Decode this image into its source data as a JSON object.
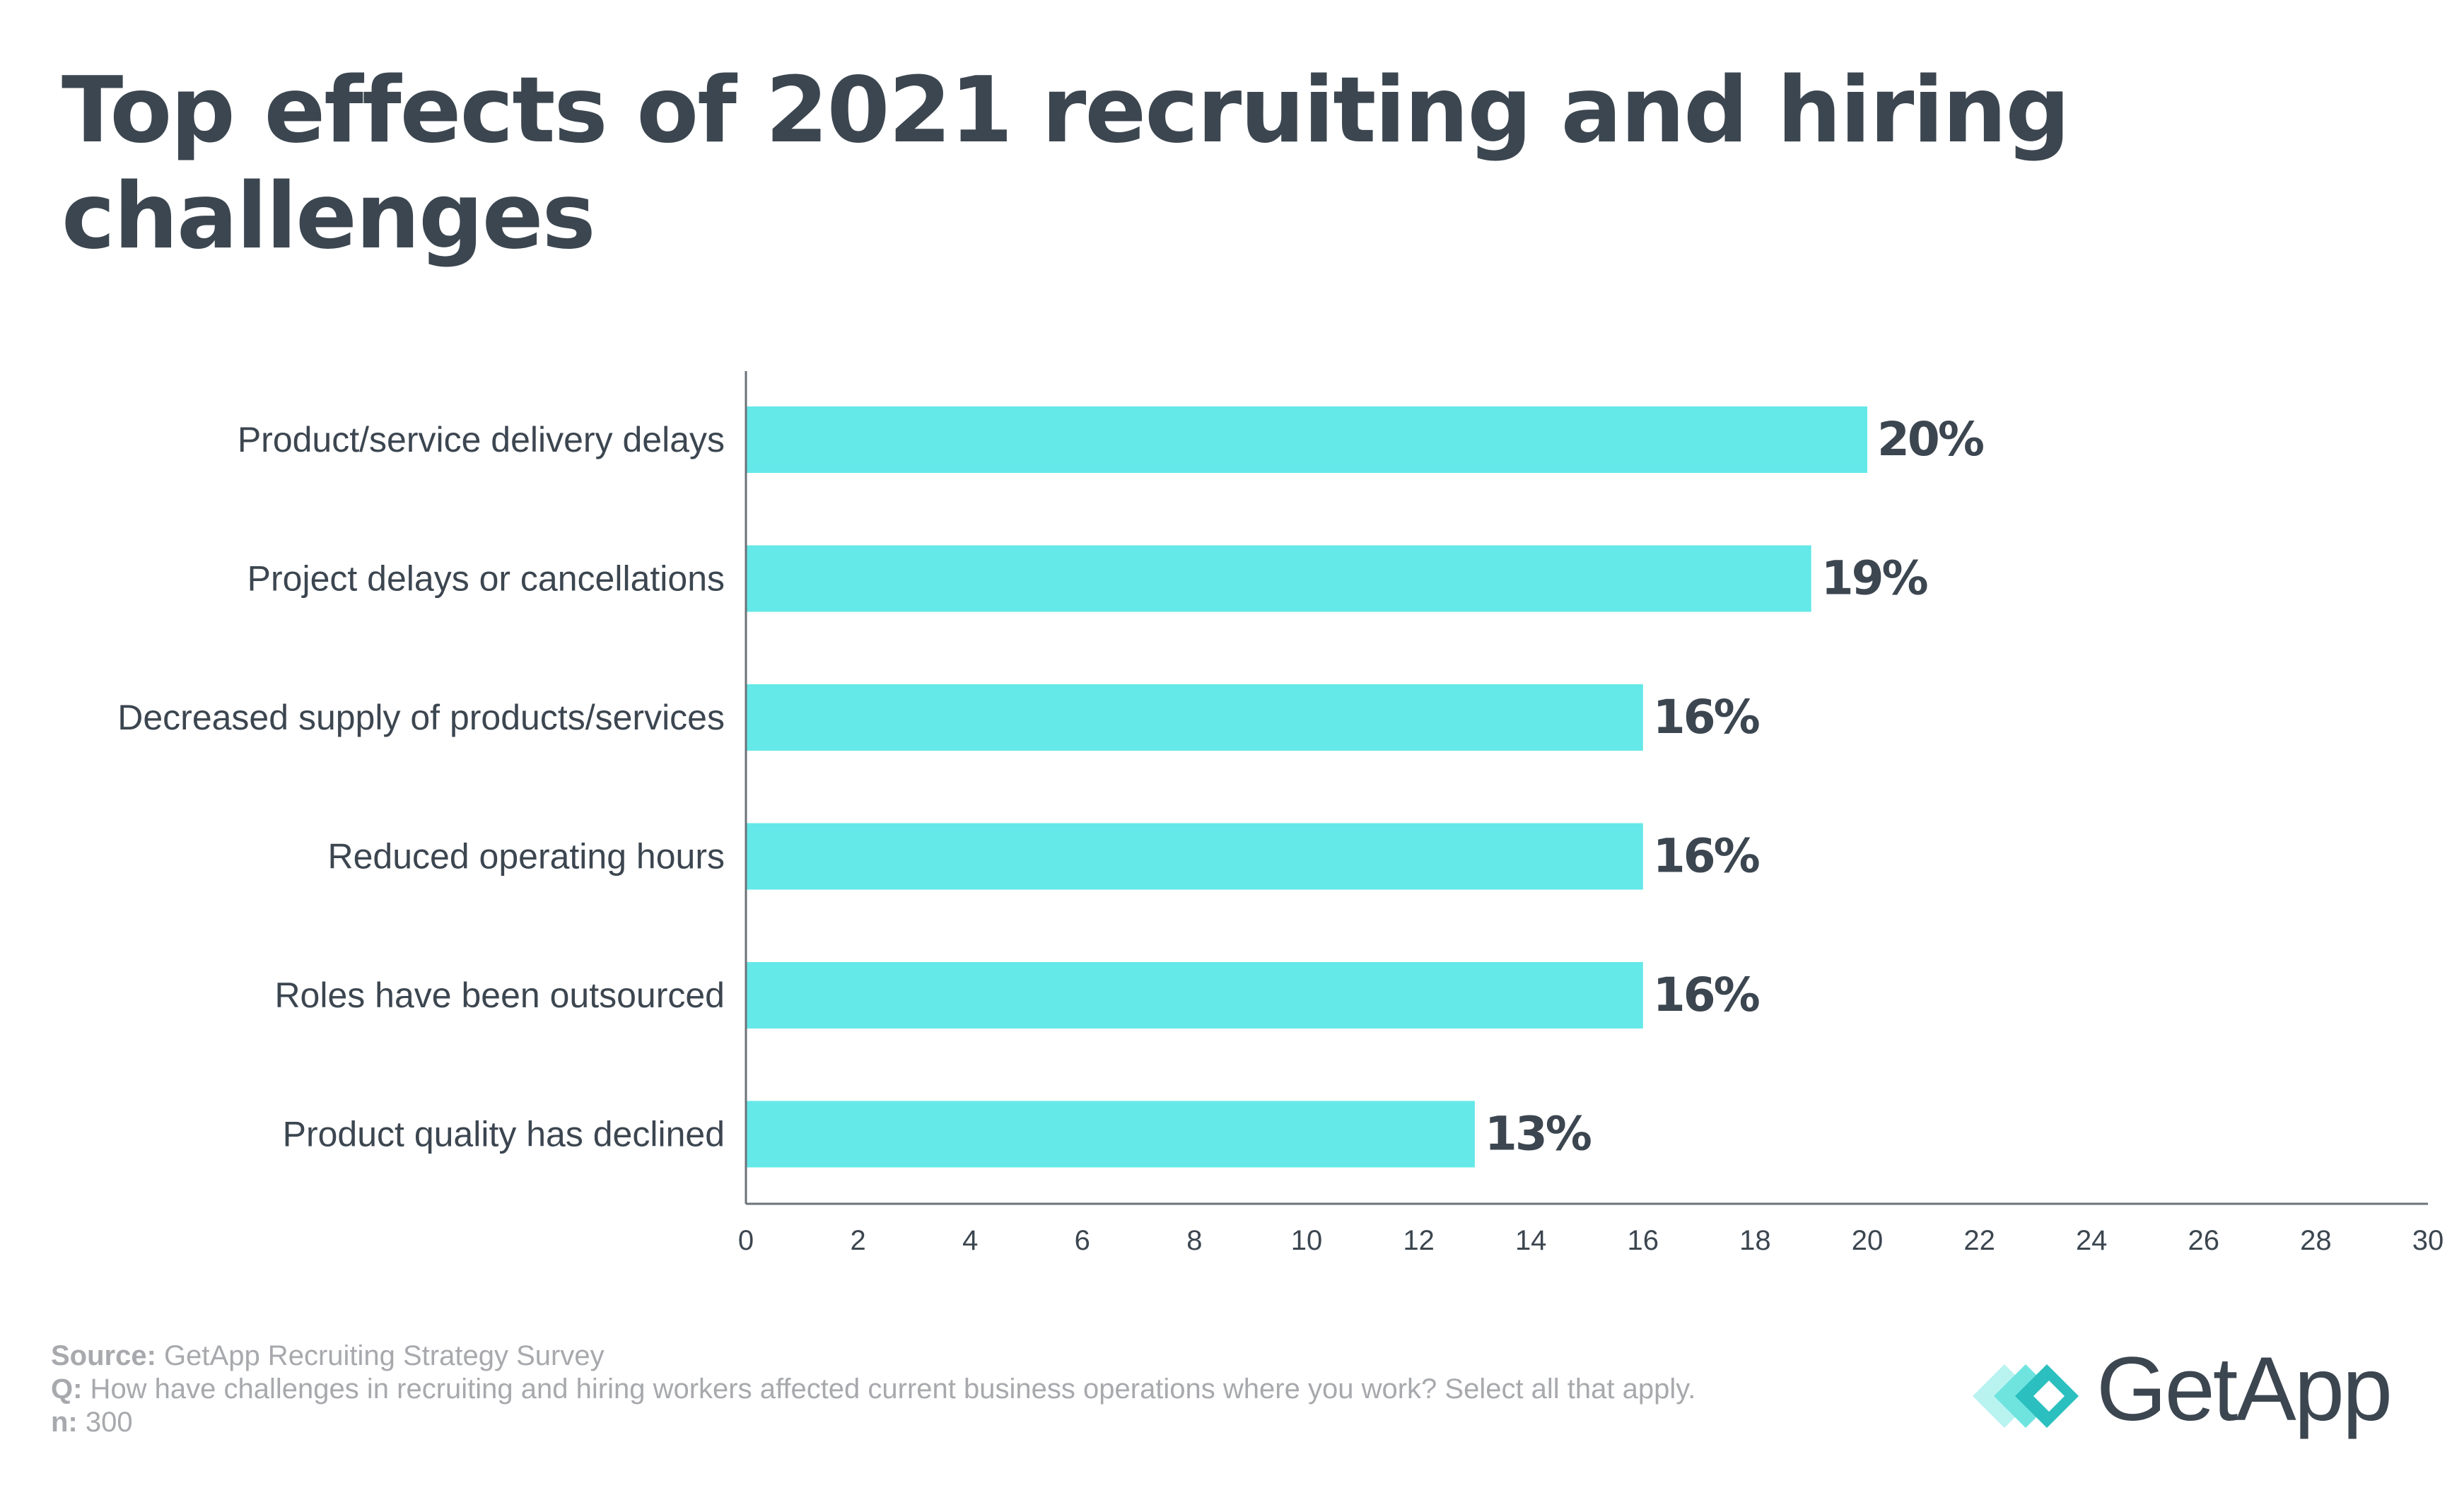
{
  "title": "Top effects of 2021 recruiting and hiring challenges",
  "colors": {
    "bar": "#64e8e8",
    "text": "#3c4650",
    "axis": "#6b7278",
    "footer": "#a7a9ad",
    "logo_light": "#a8f0ee",
    "logo_mid": "#5fe0dc",
    "logo_dark": "#2bbfbf"
  },
  "chart_data": {
    "type": "bar",
    "orientation": "horizontal",
    "title": "Top effects of 2021 recruiting and hiring challenges",
    "categories": [
      "Product/service delivery delays",
      "Project delays or cancellations",
      "Decreased supply of products/services",
      "Reduced operating hours",
      "Roles have been outsourced",
      "Product quality has declined"
    ],
    "values": [
      20,
      19,
      16,
      16,
      16,
      13
    ],
    "data_labels": [
      "20%",
      "19%",
      "16%",
      "16%",
      "16%",
      "13%"
    ],
    "xlabel": "",
    "ylabel": "",
    "xlim": [
      0,
      30
    ],
    "xticks": [
      "0",
      "2",
      "4",
      "6",
      "8",
      "10",
      "12",
      "14",
      "16",
      "18",
      "20",
      "22",
      "24",
      "26",
      "28",
      "30"
    ],
    "grid": false
  },
  "footer": {
    "source_label": "Source:",
    "source_text": " GetApp Recruiting Strategy Survey",
    "q_label": "Q:",
    "q_text": " How have challenges in recruiting and hiring workers affected current business operations where you work? Select all that apply.",
    "n_label": "n:",
    "n_text": " 300"
  },
  "logo": {
    "text": "GetApp",
    "icon": "getapp-chevrons-icon"
  }
}
